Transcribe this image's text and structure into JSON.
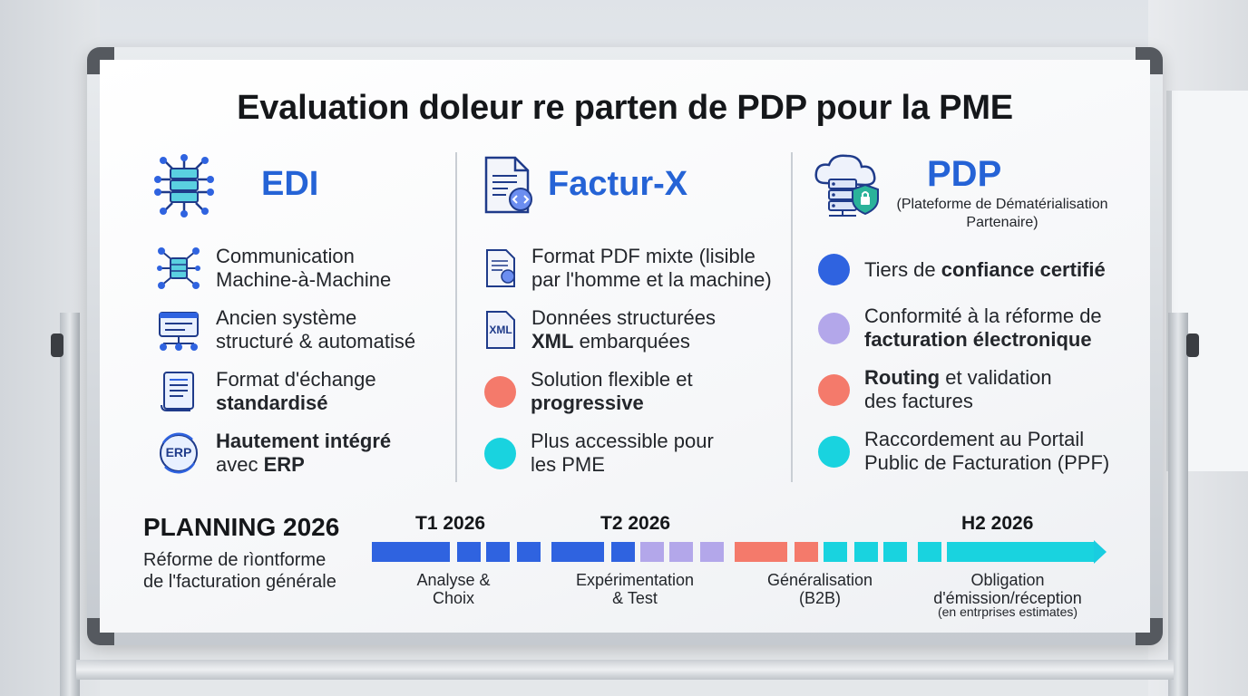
{
  "title": "Evaluation doleur re parten de PDP pour la PME",
  "columns": [
    {
      "heading": "EDI",
      "icon": "network-server-icon",
      "items": [
        {
          "icon": "network-icon",
          "line1": "Communication",
          "line2": "Machine-à-Machine"
        },
        {
          "icon": "system-icon",
          "line1": "Ancien système",
          "line2": "structuré & automatisé"
        },
        {
          "icon": "document-icon",
          "line1": "Format d'échange",
          "line2": "standardisé"
        },
        {
          "icon": "erp-icon",
          "erp_label": "ERP",
          "line1": "Hautement intégré",
          "line2a": "avec ",
          "line2b": "ERP"
        }
      ]
    },
    {
      "heading": "Factur-X",
      "icon": "pdf-code-icon",
      "items": [
        {
          "icon": "pdf-icon",
          "line1": "Format PDF mixte (lisible",
          "line2": "par l'homme et la machine)"
        },
        {
          "icon": "xml-icon",
          "xml_label": "XML",
          "line1": "Données structurées",
          "line2a": "XML",
          "line2b": " embarquées"
        },
        {
          "color": "#f47a6b",
          "line1": "Solution flexible et",
          "line2": "progressive"
        },
        {
          "color": "#19d3df",
          "line1": "Plus accessible pour",
          "line2": "les PME"
        }
      ]
    },
    {
      "heading": "PDP",
      "subheading1": "(Plateforme de Dématérialisation",
      "subheading2": "Partenaire)",
      "icon": "cloud-shield-icon",
      "items": [
        {
          "color": "#2f63e0",
          "line1a": "Tiers de ",
          "line1b": "confiance certifié"
        },
        {
          "color": "#b3a7ea",
          "line1": "Conformité à la réforme de",
          "line2": "facturation électronique"
        },
        {
          "color": "#f47a6b",
          "line1a": "Routing",
          "line1b": " et validation",
          "line2": "des factures"
        },
        {
          "color": "#19d3df",
          "line1": "Raccordement au Portail",
          "line2": "Public de Facturation (PPF)"
        }
      ]
    }
  ],
  "planning": {
    "title": "PLANNING 2026",
    "subtitle1": "Réforme de rìontforme",
    "subtitle2": "de l'facturation générale",
    "labels": [
      "T1 2026",
      "T2 2026",
      "H2 2026"
    ],
    "phases": [
      {
        "line1": "Analyse &",
        "line2": "Choix"
      },
      {
        "line1": "Expérimentation",
        "line2": "& Test"
      },
      {
        "line1": "Généralisation",
        "line2": "(B2B)"
      },
      {
        "line1": "Obligation",
        "line2": "d'émission/réception",
        "note": "(en entrprises estimates)"
      }
    ],
    "colors": {
      "blue": "#2f63e0",
      "lavender": "#b3a7ea",
      "coral": "#f47a6b",
      "cyan": "#19d3df"
    }
  }
}
